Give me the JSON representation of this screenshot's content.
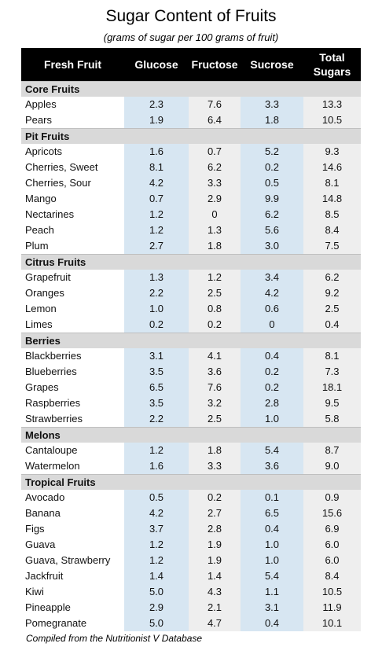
{
  "title": "Sugar Content of Fruits",
  "subtitle": "(grams of sugar per 100 grams of fruit)",
  "header": {
    "col0": "Fresh Fruit",
    "col1": "Glucose",
    "col2": "Fructose",
    "col3": "Sucrose",
    "col4_line1": "Total",
    "col4_line2": "Sugars"
  },
  "groups": [
    {
      "name": "Core Fruits",
      "rows": [
        [
          "Apples",
          "2.3",
          "7.6",
          "3.3",
          "13.3"
        ],
        [
          "Pears",
          "1.9",
          "6.4",
          "1.8",
          "10.5"
        ]
      ]
    },
    {
      "name": "Pit Fruits",
      "rows": [
        [
          "Apricots",
          "1.6",
          "0.7",
          "5.2",
          "9.3"
        ],
        [
          "Cherries, Sweet",
          "8.1",
          "6.2",
          "0.2",
          "14.6"
        ],
        [
          "Cherries, Sour",
          "4.2",
          "3.3",
          "0.5",
          "8.1"
        ],
        [
          "Mango",
          "0.7",
          "2.9",
          "9.9",
          "14.8"
        ],
        [
          "Nectarines",
          "1.2",
          "0",
          "6.2",
          "8.5"
        ],
        [
          "Peach",
          "1.2",
          "1.3",
          "5.6",
          "8.4"
        ],
        [
          "Plum",
          "2.7",
          "1.8",
          "3.0",
          "7.5"
        ]
      ]
    },
    {
      "name": "Citrus Fruits",
      "rows": [
        [
          "Grapefruit",
          "1.3",
          "1.2",
          "3.4",
          "6.2"
        ],
        [
          " Oranges",
          "2.2",
          "2.5",
          "4.2",
          "9.2"
        ],
        [
          "Lemon",
          "1.0",
          "0.8",
          "0.6",
          "2.5"
        ],
        [
          "Limes",
          "0.2",
          "0.2",
          "0",
          "0.4"
        ]
      ]
    },
    {
      "name": "Berries",
      "rows": [
        [
          "Blackberries",
          "3.1",
          "4.1",
          "0.4",
          "8.1"
        ],
        [
          "Blueberries",
          "3.5",
          "3.6",
          "0.2",
          "7.3"
        ],
        [
          "Grapes",
          "6.5",
          "7.6",
          "0.2",
          "18.1"
        ],
        [
          "Raspberries",
          "3.5",
          "3.2",
          "2.8",
          "9.5"
        ],
        [
          "Strawberries",
          "2.2",
          "2.5",
          "1.0",
          "5.8"
        ]
      ]
    },
    {
      "name": "Melons",
      "rows": [
        [
          "Cantaloupe",
          "1.2",
          "1.8",
          "5.4",
          "8.7"
        ],
        [
          "Watermelon",
          "1.6",
          "3.3",
          "3.6",
          "9.0"
        ]
      ]
    },
    {
      "name": "Tropical Fruits",
      "rows": [
        [
          "Avocado",
          "0.5",
          "0.2",
          "0.1",
          "0.9"
        ],
        [
          "Banana",
          "4.2",
          "2.7",
          "6.5",
          "15.6"
        ],
        [
          "Figs",
          "3.7",
          "2.8",
          "0.4",
          "6.9"
        ],
        [
          "Guava",
          "1.2",
          "1.9",
          "1.0",
          "6.0"
        ],
        [
          "Guava, Strawberry",
          "1.2",
          "1.9",
          "1.0",
          "6.0"
        ],
        [
          "Jackfruit",
          "1.4",
          "1.4",
          "5.4",
          "8.4"
        ],
        [
          "Kiwi",
          "5.0",
          "4.3",
          "1.1",
          "10.5"
        ],
        [
          "Pineapple",
          "2.9",
          "2.1",
          "3.1",
          "11.9"
        ],
        [
          "Pomegranate",
          "5.0",
          "4.7",
          "0.4",
          "10.1"
        ]
      ]
    }
  ],
  "footer": "Compiled from the Nutritionist V Database",
  "colors": {
    "header_bg": "#000000",
    "category_bg": "#d9d9d9",
    "blue_col": "#d7e6f2",
    "gray_col": "#eeeeee"
  }
}
